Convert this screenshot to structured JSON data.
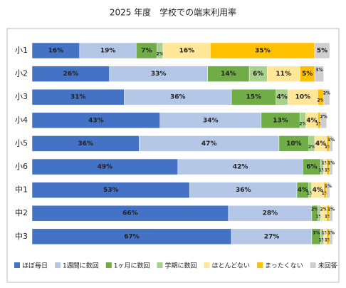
{
  "chart_data": {
    "type": "stacked-bar-horizontal",
    "title": "2025 年度　学校での端末利用率",
    "categories": [
      "小1",
      "小2",
      "小3",
      "小4",
      "小5",
      "小6",
      "中1",
      "中2",
      "中3"
    ],
    "xlim": [
      0,
      100
    ],
    "series": [
      {
        "name": "ほぼ毎日",
        "color": "#4472c4",
        "values": [
          16,
          26,
          31,
          43,
          36,
          49,
          53,
          66,
          67
        ],
        "value_labels": [
          "16%",
          "26%",
          "31%",
          "43%",
          "36%",
          "49%",
          "53%",
          "66%",
          "67%"
        ]
      },
      {
        "name": "1週間に数回",
        "color": "#b4c7e7",
        "values": [
          19,
          33,
          36,
          34,
          47,
          42,
          36,
          28,
          27
        ],
        "value_labels": [
          "19%",
          "33%",
          "36%",
          "34%",
          "47%",
          "42%",
          "36%",
          "28%",
          "27%"
        ]
      },
      {
        "name": "1ヶ月に数回",
        "color": "#70ad47",
        "values": [
          7,
          14,
          15,
          13,
          10,
          6,
          4,
          2,
          3
        ],
        "value_labels": [
          "7%",
          "14%",
          "15%",
          "13%",
          "10%",
          "6%",
          "4%",
          "2%",
          "3%"
        ]
      },
      {
        "name": "学期に数回",
        "color": "#a9d18e",
        "values": [
          2,
          6,
          4,
          2,
          2,
          1,
          1,
          1,
          1
        ],
        "value_labels": [
          "2%",
          "6%",
          "4%",
          "2%",
          "2%",
          "1%",
          "1%",
          "1%",
          "1%"
        ]
      },
      {
        "name": "ほとんどない",
        "color": "#ffe699",
        "values": [
          16,
          11,
          10,
          4,
          4,
          1,
          4,
          2,
          1
        ],
        "value_labels": [
          "16%",
          "11%",
          "10%",
          "4%",
          "4%",
          "1%",
          "4%",
          "2%",
          "1%"
        ]
      },
      {
        "name": "まったくない",
        "color": "#ffc000",
        "values": [
          35,
          5,
          2,
          1,
          1,
          1,
          1,
          1,
          1
        ],
        "value_labels": [
          "35%",
          "5%",
          "2%",
          "1%",
          "1%",
          "1%",
          "1%",
          "1%",
          "1%"
        ]
      },
      {
        "name": "未回答",
        "color": "#d0cece",
        "values": [
          5,
          3,
          2,
          2,
          1,
          1,
          1,
          1,
          1
        ],
        "value_labels": [
          "5%",
          "3%",
          "2%",
          "2%",
          "1%",
          "1%",
          "1%",
          "1%",
          "1%"
        ]
      }
    ]
  }
}
